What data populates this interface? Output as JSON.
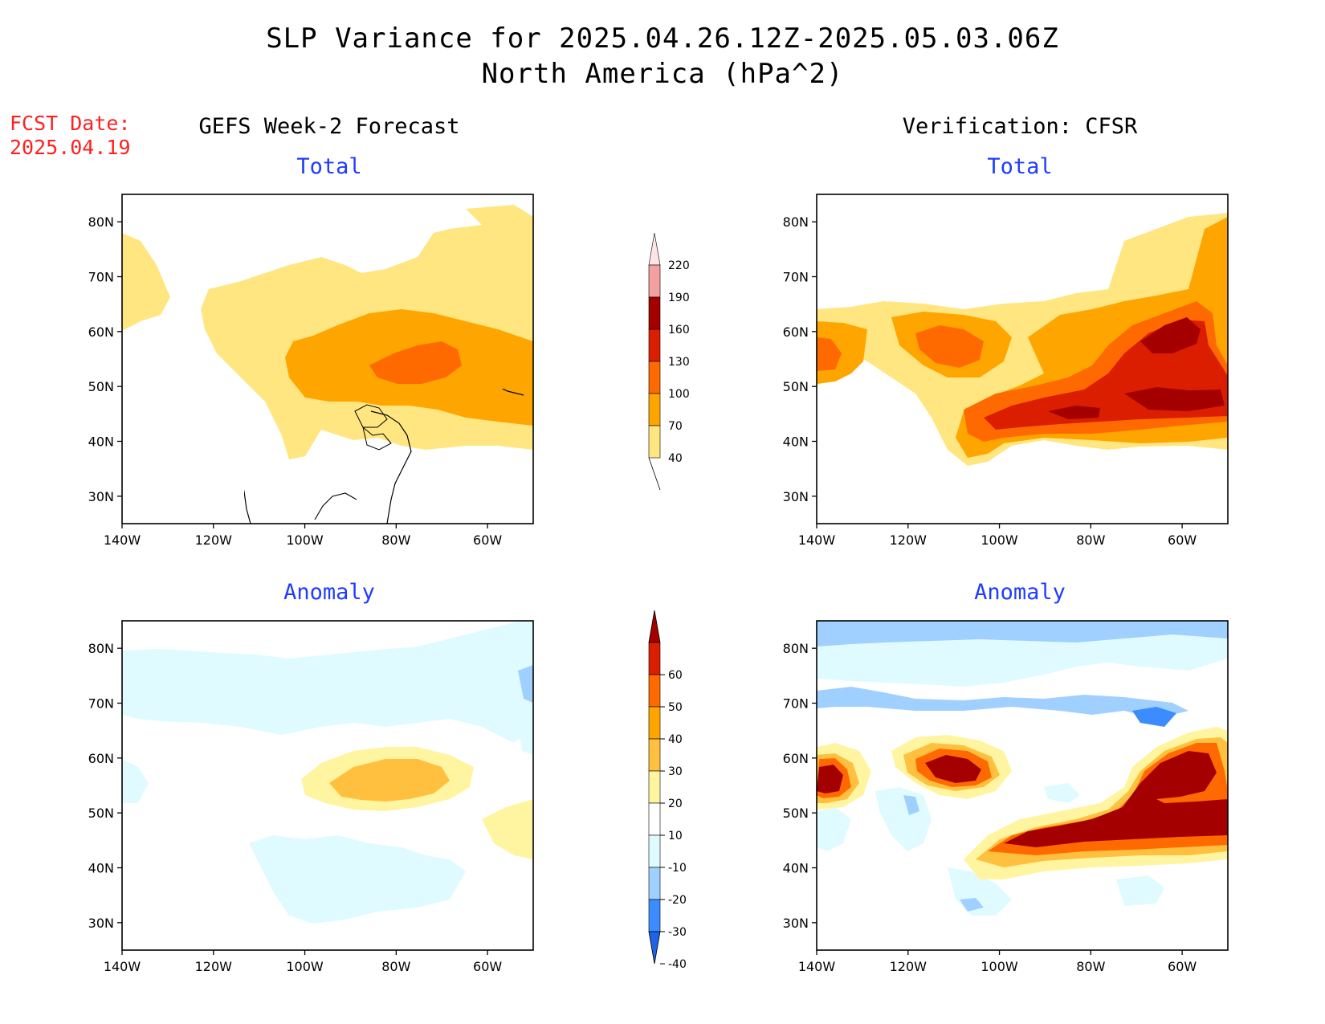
{
  "header": {
    "title": "SLP Variance for 2025.04.26.12Z-2025.05.03.06Z",
    "subtitle": "North America (hPa^2)",
    "fcst_label": "FCST Date:",
    "fcst_date": "2025.04.19"
  },
  "columns": {
    "left": "GEFS Week-2 Forecast",
    "right": "Verification: CFSR"
  },
  "panel_titles": {
    "total": "Total",
    "anomaly": "Anomaly"
  },
  "axes": {
    "lat_labels": [
      "80N",
      "70N",
      "60N",
      "50N",
      "40N",
      "30N"
    ],
    "lon_labels": [
      "140W",
      "120W",
      "100W",
      "80W",
      "60W"
    ],
    "lat_values": [
      80,
      70,
      60,
      50,
      40,
      30
    ],
    "lon_values": [
      -140,
      -120,
      -100,
      -80,
      -60
    ],
    "lat_range": [
      25,
      85
    ],
    "lon_range": [
      -140,
      -50
    ]
  },
  "colorbars": {
    "total": {
      "labels": [
        "220",
        "190",
        "160",
        "130",
        "100",
        "70",
        "40"
      ],
      "colors": [
        "#ffe6e6",
        "#f2a0a0",
        "#a50000",
        "#dc1e00",
        "#ff6a00",
        "#ffa500",
        "#ffe680"
      ]
    },
    "anomaly": {
      "labels": [
        "60",
        "50",
        "40",
        "30",
        "20",
        "10",
        "-10",
        "-20",
        "-30",
        "-40"
      ],
      "colors": [
        "#a50000",
        "#dc1e00",
        "#ff6a00",
        "#ffa500",
        "#ffc040",
        "#fff5a0",
        "#ffffff",
        "#e0fbff",
        "#a0d0ff",
        "#3c8cff",
        "#1e64e6"
      ]
    }
  },
  "palette": {
    "t40": "#ffe680",
    "t70": "#ffa500",
    "t100": "#ff6a00",
    "t130": "#dc1e00",
    "t160": "#a50000",
    "t190": "#f2a0a0",
    "a10": "#fff5a0",
    "a20": "#ffc040",
    "a30": "#ffa500",
    "a40": "#ff6a00",
    "a50": "#dc1e00",
    "a60": "#a50000",
    "am10": "#e0fbff",
    "am20": "#a0d0ff",
    "am30": "#3c8cff"
  }
}
